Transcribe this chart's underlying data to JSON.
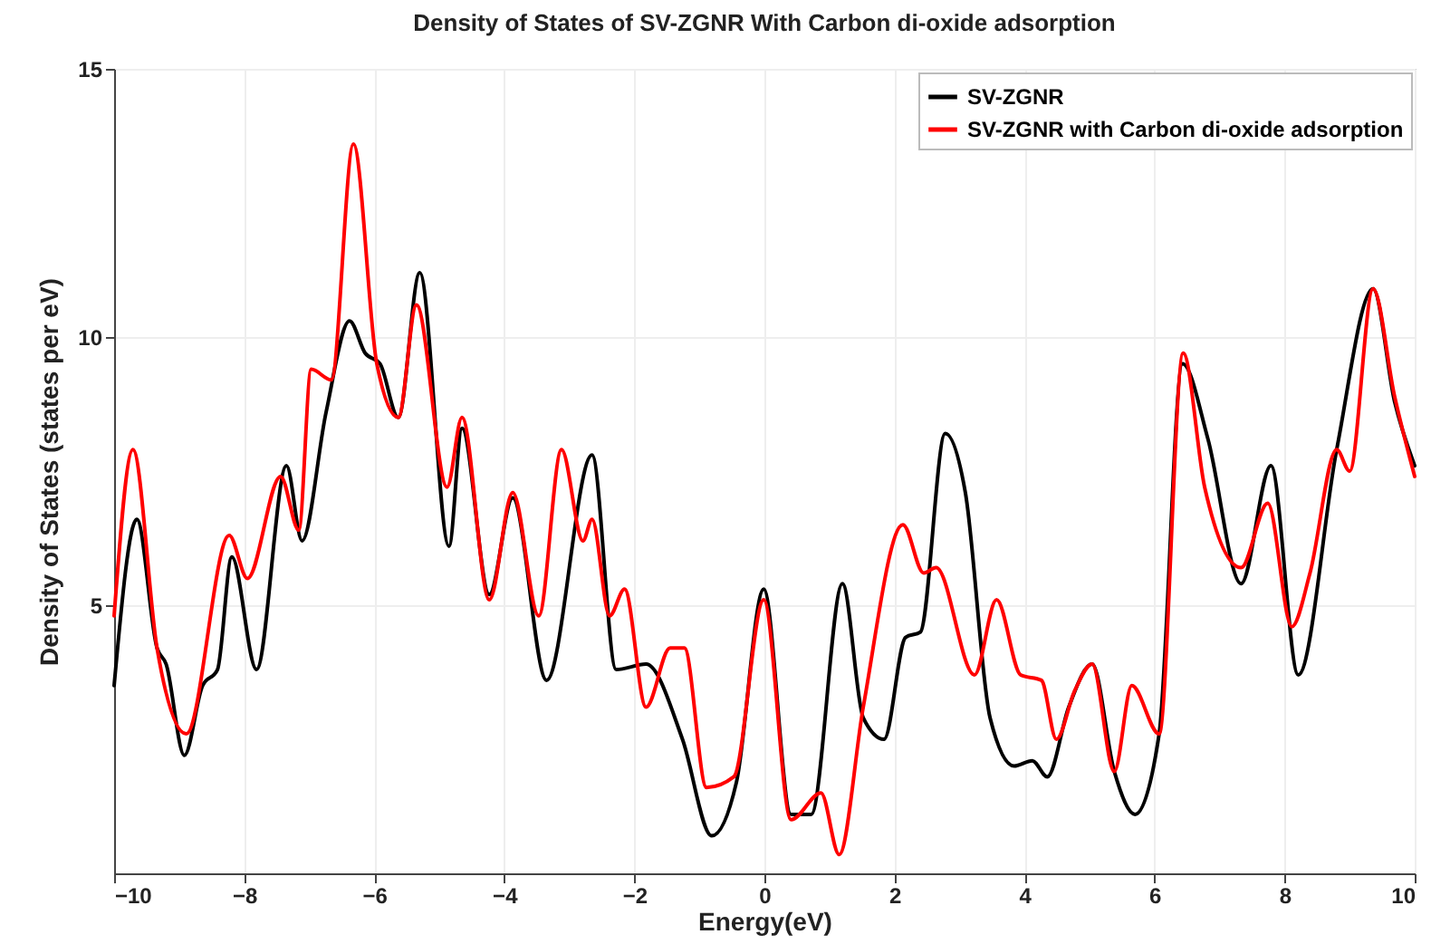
{
  "chart_data": {
    "type": "line",
    "title": "Density of States of SV-ZGNR With Carbon di-oxide adsorption",
    "xlabel": "Energy(eV)",
    "ylabel": "Density of States (states per eV)",
    "xlim": [
      -10,
      10
    ],
    "xticks": [
      -10,
      -8,
      -6,
      -4,
      -2,
      0,
      2,
      4,
      6,
      8,
      10
    ],
    "ylim": [
      0,
      15
    ],
    "yticks": [
      5,
      10,
      15
    ],
    "grid": true,
    "legend": "top right",
    "line_style": "solid",
    "marker": "none",
    "series": [
      {
        "name": "SV-ZGNR",
        "color": "#000000",
        "x": [
          -10,
          -9.65,
          -9.34,
          -9.2,
          -8.92,
          -8.64,
          -8.41,
          -8.19,
          -7.81,
          -7.35,
          -7.11,
          -6.74,
          -6.38,
          -6.14,
          -5.91,
          -5.63,
          -5.3,
          -4.85,
          -4.65,
          -4.23,
          -3.87,
          -3.35,
          -2.65,
          -2.28,
          -1.82,
          -1.26,
          -0.81,
          -0.43,
          -0.01,
          0.41,
          0.72,
          1.2,
          1.52,
          1.84,
          2.17,
          2.4,
          2.78,
          3.09,
          3.47,
          3.84,
          4.12,
          4.35,
          4.68,
          5.04,
          5.38,
          5.7,
          6.07,
          6.43,
          6.82,
          7.33,
          7.79,
          8.21,
          8.8,
          9.36,
          9.69,
          10
        ],
        "values": [
          3.5,
          6.6,
          4.2,
          3.9,
          2.2,
          3.5,
          3.8,
          5.9,
          3.8,
          7.6,
          6.2,
          8.6,
          10.3,
          9.7,
          9.5,
          8.5,
          11.2,
          6.1,
          8.3,
          5.2,
          7.0,
          3.6,
          7.8,
          3.8,
          3.9,
          2.5,
          0.7,
          1.7,
          5.3,
          1.1,
          1.1,
          5.4,
          2.9,
          2.5,
          4.4,
          4.5,
          8.2,
          7.1,
          2.9,
          2.0,
          2.1,
          1.8,
          3.1,
          3.9,
          1.9,
          1.1,
          2.6,
          9.5,
          8.1,
          5.4,
          7.6,
          3.7,
          7.9,
          10.9,
          8.8,
          7.6
        ]
      },
      {
        "name": "SV-ZGNR with Carbon di-oxide adsorption",
        "color": "#ff0000",
        "x": [
          -10,
          -9.71,
          -9.34,
          -8.89,
          -8.23,
          -7.95,
          -7.44,
          -7.16,
          -6.97,
          -6.66,
          -6.32,
          -5.96,
          -5.63,
          -5.35,
          -4.88,
          -4.65,
          -4.23,
          -3.87,
          -3.47,
          -3.12,
          -2.79,
          -2.65,
          -2.38,
          -2.15,
          -1.82,
          -1.45,
          -1.23,
          -0.89,
          -0.47,
          -0.01,
          0.41,
          0.87,
          1.15,
          1.52,
          2.13,
          2.45,
          2.64,
          3.23,
          3.57,
          3.94,
          4.26,
          4.49,
          4.77,
          5.04,
          5.38,
          5.65,
          6.07,
          6.44,
          6.77,
          7.33,
          7.74,
          8.11,
          8.39,
          8.8,
          9.0,
          9.36,
          9.69,
          10
        ],
        "values": [
          4.8,
          7.9,
          4.2,
          2.6,
          6.3,
          5.5,
          7.4,
          6.4,
          9.4,
          9.2,
          13.6,
          9.5,
          8.5,
          10.6,
          7.2,
          8.5,
          5.1,
          7.1,
          4.8,
          7.9,
          6.2,
          6.6,
          4.8,
          5.3,
          3.1,
          4.2,
          4.2,
          1.6,
          1.8,
          5.1,
          1.0,
          1.5,
          0.35,
          3.1,
          6.5,
          5.6,
          5.7,
          3.7,
          5.1,
          3.7,
          3.6,
          2.5,
          3.4,
          3.9,
          1.9,
          3.5,
          2.6,
          9.7,
          7.2,
          5.7,
          6.9,
          4.6,
          5.6,
          7.9,
          7.5,
          10.9,
          8.9,
          7.4
        ]
      }
    ]
  }
}
